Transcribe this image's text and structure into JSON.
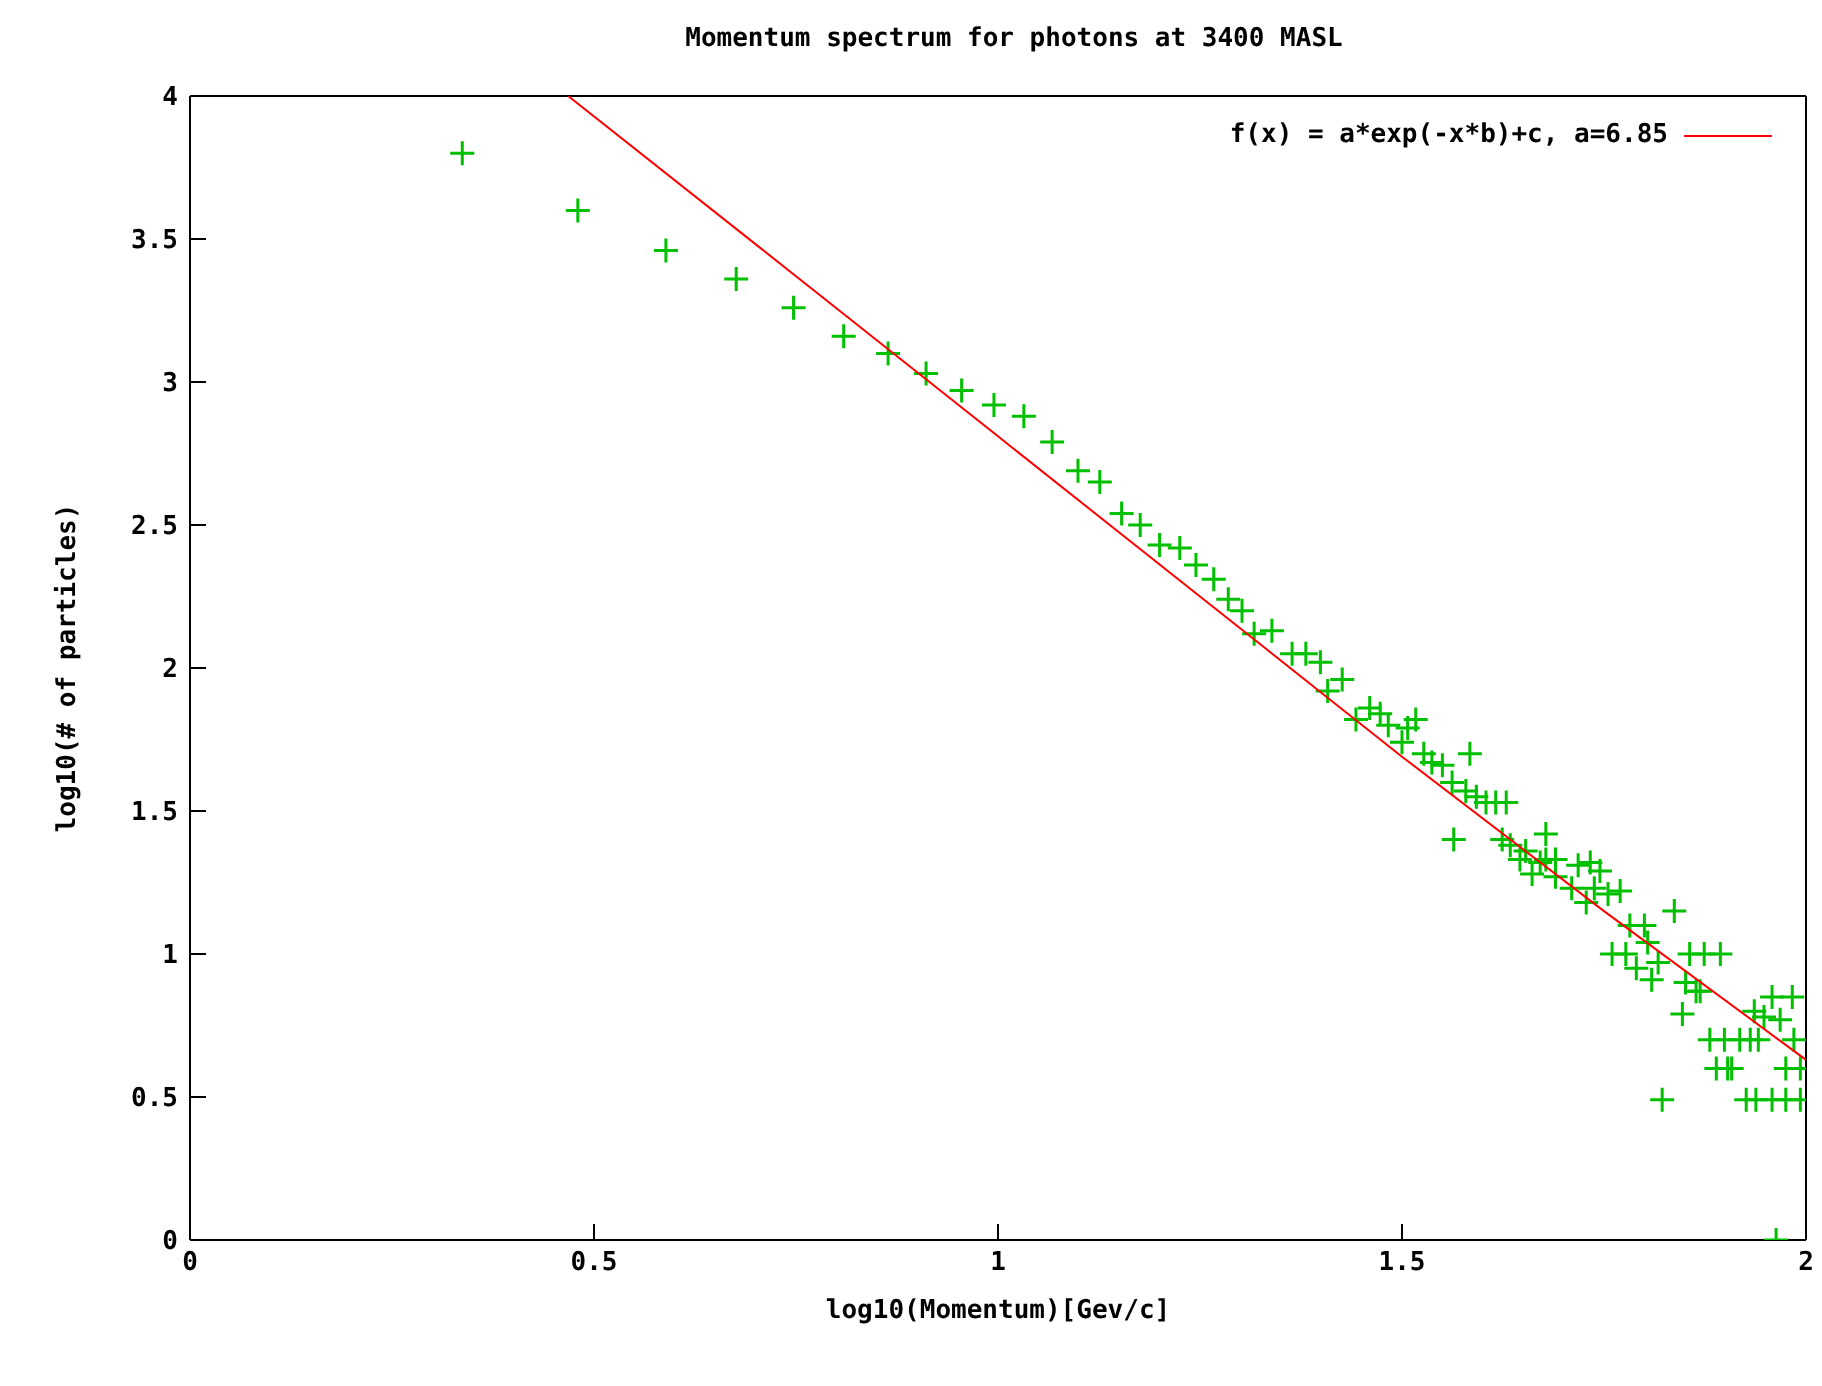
{
  "chart_data": {
    "type": "scatter",
    "title": "Momentum spectrum for photons at 3400 MASL",
    "xlabel": "log10(Momentum)[Gev/c]",
    "ylabel": "log10(# of particles)",
    "xlim": [
      0,
      2
    ],
    "xticks": [
      0,
      0.5,
      1,
      1.5,
      2
    ],
    "ylim": [
      0,
      4
    ],
    "yticks": [
      0,
      0.5,
      1,
      1.5,
      2,
      2.5,
      3,
      3.5,
      4
    ],
    "grid": false,
    "legend": "top right",
    "marker": "cross",
    "series": [
      {
        "color": "#00c000",
        "x": [
          0.337,
          0.48,
          0.589,
          0.676,
          0.747,
          0.809,
          0.864,
          0.911,
          0.955,
          0.995,
          1.032,
          1.067,
          1.099,
          1.126,
          1.153,
          1.176,
          1.2,
          1.225,
          1.245,
          1.267,
          1.285,
          1.302,
          1.317,
          1.339,
          1.364,
          1.381,
          1.399,
          1.408,
          1.426,
          1.443,
          1.46,
          1.473,
          1.483,
          1.5,
          1.507,
          1.517,
          1.527,
          1.537,
          1.55,
          1.562,
          1.564,
          1.579,
          1.584,
          1.592,
          1.604,
          1.616,
          1.629,
          1.624,
          1.634,
          1.646,
          1.653,
          1.661,
          1.671,
          1.678,
          1.69,
          1.678,
          1.69,
          1.71,
          1.718,
          1.728,
          1.733,
          1.738,
          1.745,
          1.755,
          1.76,
          1.77,
          1.777,
          1.782,
          1.79,
          1.8,
          1.804,
          1.809,
          1.817,
          1.822,
          1.837,
          1.847,
          1.851,
          1.856,
          1.864,
          1.869,
          1.874,
          1.881,
          1.889,
          1.894,
          1.899,
          1.903,
          1.908,
          1.918,
          1.926,
          1.931,
          1.936,
          1.938,
          1.941,
          1.948,
          1.958,
          1.963,
          1.958,
          1.968,
          1.975,
          1.975,
          1.983,
          1.985,
          1.993,
          1.993
        ],
        "values": [
          3.8,
          3.6,
          3.46,
          3.36,
          3.26,
          3.16,
          3.1,
          3.03,
          2.97,
          2.92,
          2.88,
          2.79,
          2.69,
          2.65,
          2.54,
          2.5,
          2.43,
          2.42,
          2.36,
          2.31,
          2.24,
          2.2,
          2.12,
          2.13,
          2.05,
          2.05,
          2.02,
          1.92,
          1.96,
          1.82,
          1.86,
          1.84,
          1.8,
          1.74,
          1.79,
          1.82,
          1.7,
          1.67,
          1.66,
          1.6,
          1.4,
          1.57,
          1.7,
          1.55,
          1.53,
          1.53,
          1.53,
          1.4,
          1.38,
          1.33,
          1.36,
          1.28,
          1.32,
          1.33,
          1.27,
          1.42,
          1.33,
          1.23,
          1.31,
          1.18,
          1.32,
          1.23,
          1.29,
          1.21,
          1.0,
          1.22,
          1.0,
          1.1,
          0.95,
          1.1,
          1.04,
          0.91,
          0.97,
          0.49,
          1.15,
          0.79,
          0.9,
          1.0,
          0.87,
          0.87,
          1.0,
          0.7,
          0.6,
          1.0,
          0.7,
          0.6,
          0.6,
          0.7,
          0.49,
          0.7,
          0.8,
          0.49,
          0.7,
          0.78,
          0.49,
          0.0,
          0.85,
          0.77,
          0.49,
          0.6,
          0.85,
          0.7,
          0.49,
          0.6
        ]
      },
      {
        "type": "line",
        "name": "f(x) = a*exp(-x*b)+c, a=6.85",
        "color": "#ff0000",
        "marker": "none",
        "x": [
          0.468,
          0.75,
          1,
          1.25,
          1.5,
          1.75,
          2
        ],
        "values": [
          4.0,
          3.37,
          2.81,
          2.25,
          1.69,
          1.15,
          0.63
        ]
      }
    ]
  }
}
